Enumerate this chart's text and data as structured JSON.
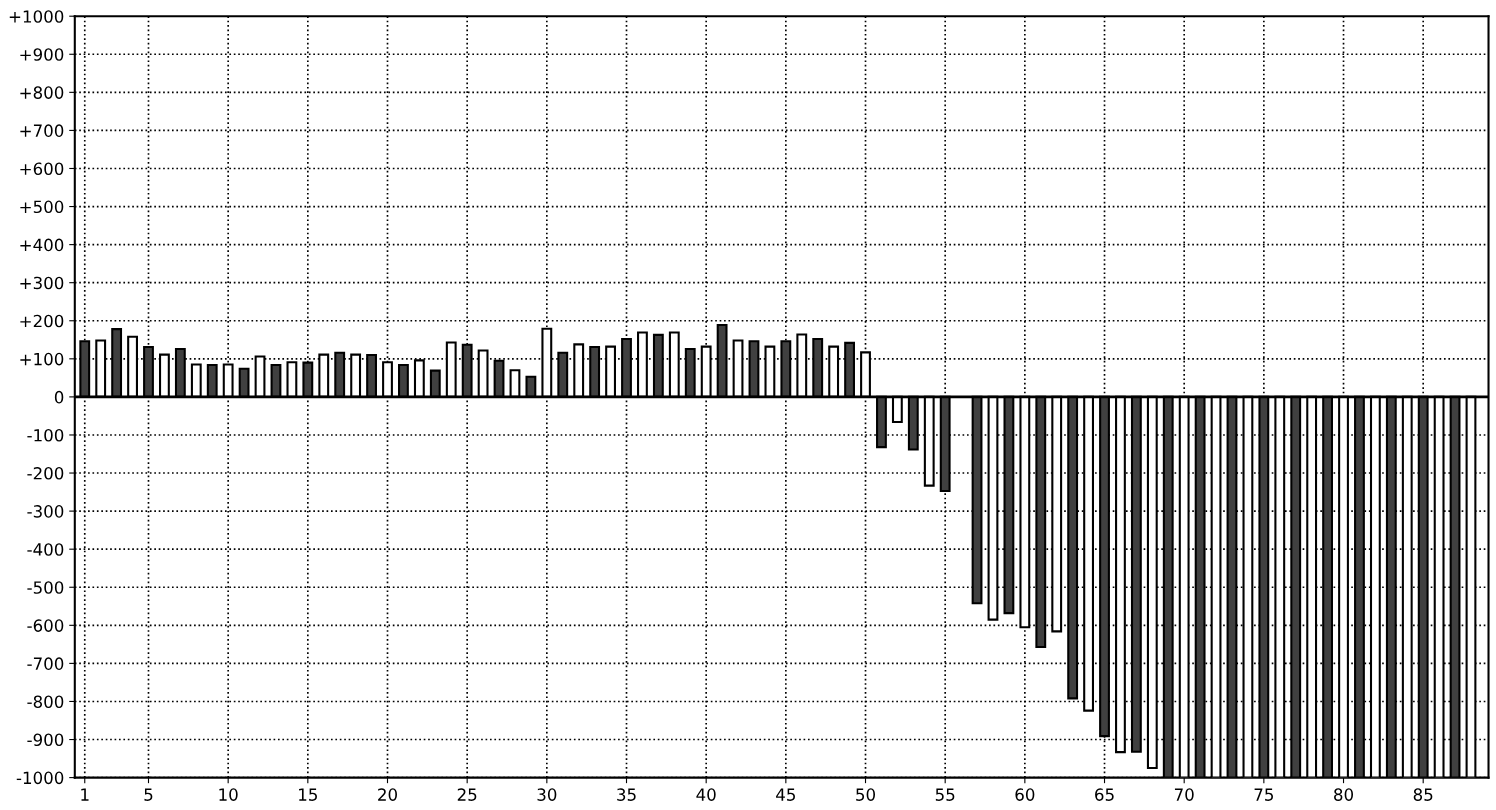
{
  "chart_data": {
    "type": "bar",
    "x": [
      1,
      2,
      3,
      4,
      5,
      6,
      7,
      8,
      9,
      10,
      11,
      12,
      13,
      14,
      15,
      16,
      17,
      18,
      19,
      20,
      21,
      22,
      23,
      24,
      25,
      26,
      27,
      28,
      29,
      30,
      31,
      32,
      33,
      34,
      35,
      36,
      37,
      38,
      39,
      40,
      41,
      42,
      43,
      44,
      45,
      46,
      47,
      48,
      49,
      50,
      51,
      52,
      53,
      54,
      55,
      56,
      57,
      58,
      59,
      60,
      61,
      62,
      63,
      64,
      65,
      66,
      67,
      68,
      69,
      70,
      71,
      72,
      73,
      74,
      75,
      76,
      77,
      78,
      79,
      80,
      81,
      82,
      83,
      84,
      85,
      86,
      87,
      88
    ],
    "values": [
      146,
      148,
      178,
      158,
      131,
      111,
      126,
      85,
      84,
      85,
      74,
      106,
      84,
      91,
      90,
      111,
      116,
      111,
      110,
      91,
      84,
      96,
      69,
      143,
      137,
      122,
      95,
      70,
      53,
      179,
      116,
      138,
      131,
      132,
      152,
      169,
      163,
      169,
      126,
      132,
      189,
      148,
      146,
      132,
      146,
      164,
      152,
      132,
      142,
      117,
      -132,
      -66,
      -138,
      -233,
      -247,
      null,
      -542,
      -585,
      -568,
      -605,
      -657,
      -616,
      -792,
      -824,
      -891,
      -933,
      -932,
      -975,
      -1000,
      -1000,
      -1000,
      -1000,
      -1000,
      -1000,
      -1000,
      -1000,
      -1000,
      -1000,
      -1000,
      -1000,
      -1000,
      -1000,
      -1000,
      -1000,
      -1000,
      -1000,
      -1000,
      -1000
    ],
    "colors": [
      "#404040",
      "#ffffff",
      "#404040",
      "#ffffff",
      "#404040",
      "#ffffff",
      "#404040",
      "#ffffff",
      "#404040",
      "#ffffff",
      "#404040",
      "#ffffff",
      "#404040",
      "#ffffff",
      "#404040",
      "#ffffff",
      "#404040",
      "#ffffff",
      "#404040",
      "#ffffff",
      "#404040",
      "#ffffff",
      "#404040",
      "#ffffff",
      "#404040",
      "#ffffff",
      "#404040",
      "#ffffff",
      "#404040",
      "#ffffff",
      "#404040",
      "#ffffff",
      "#404040",
      "#ffffff",
      "#404040",
      "#ffffff",
      "#404040",
      "#ffffff",
      "#404040",
      "#ffffff",
      "#404040",
      "#ffffff",
      "#404040",
      "#ffffff",
      "#404040",
      "#ffffff",
      "#404040",
      "#ffffff",
      "#404040",
      "#ffffff",
      "#404040",
      "#ffffff",
      "#404040",
      "#ffffff",
      "#404040",
      "#ffffff",
      "#404040",
      "#ffffff",
      "#404040",
      "#ffffff",
      "#404040",
      "#ffffff",
      "#404040",
      "#ffffff",
      "#404040",
      "#ffffff",
      "#404040",
      "#ffffff",
      "#404040",
      "#ffffff",
      "#404040",
      "#ffffff",
      "#404040",
      "#ffffff",
      "#404040",
      "#ffffff",
      "#404040",
      "#ffffff",
      "#404040",
      "#ffffff",
      "#404040",
      "#ffffff",
      "#404040",
      "#ffffff",
      "#404040",
      "#ffffff",
      "#404040",
      "#ffffff"
    ],
    "xlim": [
      0.375,
      89.1
    ],
    "xticks": [
      1,
      5,
      10,
      15,
      20,
      25,
      30,
      35,
      40,
      45,
      50,
      55,
      60,
      65,
      70,
      75,
      80,
      85
    ],
    "ylim": [
      -1000,
      1000
    ],
    "yticks": [
      {
        "value": 1000,
        "label": "+1000"
      },
      {
        "value": 900,
        "label": "+900"
      },
      {
        "value": 800,
        "label": "+800"
      },
      {
        "value": 700,
        "label": "+700"
      },
      {
        "value": 600,
        "label": "+600"
      },
      {
        "value": 500,
        "label": "+500"
      },
      {
        "value": 400,
        "label": "+400"
      },
      {
        "value": 300,
        "label": "+300"
      },
      {
        "value": 200,
        "label": "+200"
      },
      {
        "value": 100,
        "label": "+100"
      },
      0,
      {
        "value": -100,
        "label": "-100"
      },
      {
        "value": -200,
        "label": "-200"
      },
      {
        "value": -300,
        "label": "-300"
      },
      {
        "value": -400,
        "label": "-400"
      },
      {
        "value": -500,
        "label": "-500"
      },
      {
        "value": -600,
        "label": "-600"
      },
      {
        "value": -700,
        "label": "-700"
      },
      {
        "value": -800,
        "label": "-800"
      },
      {
        "value": -900,
        "label": "-900"
      },
      {
        "value": -1000,
        "label": "-1000"
      }
    ],
    "grid": true,
    "line_style": "dotted"
  }
}
